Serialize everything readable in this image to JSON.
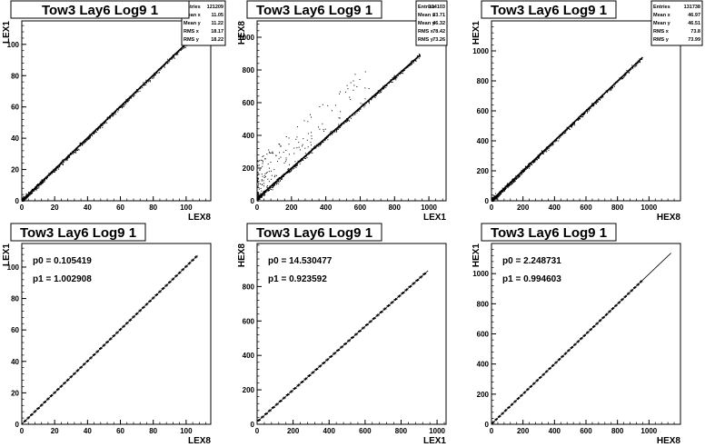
{
  "chart_data": [
    {
      "type": "scatter",
      "title": "Tow3 Lay6 Log9 1",
      "xlabel": "LEX8",
      "ylabel": "LEX1",
      "xlim": [
        0,
        115
      ],
      "ylim": [
        0,
        115
      ],
      "xticks": [
        0,
        20,
        40,
        60,
        80,
        100
      ],
      "yticks": [
        0,
        20,
        40,
        60,
        80,
        100
      ],
      "stats": [
        {
          "label": "Entries",
          "value": "121209"
        },
        {
          "label": "Mean x",
          "value": "11.05"
        },
        {
          "label": "Mean y",
          "value": "11.22"
        },
        {
          "label": "RMS x",
          "value": "18.17"
        },
        {
          "label": "RMS y",
          "value": "18.22"
        }
      ],
      "trend": {
        "slope": 1.003,
        "intercept": 0.105,
        "xmax": 105
      }
    },
    {
      "type": "scatter",
      "title": "Tow3 Lay6 Log9 1",
      "xlabel": "LEX1",
      "ylabel": "HEX8",
      "xlim": [
        0,
        1100
      ],
      "ylim": [
        0,
        1100
      ],
      "xticks": [
        0,
        200,
        400,
        600,
        800,
        1000
      ],
      "yticks": [
        0,
        200,
        400,
        600,
        800,
        1000
      ],
      "stats": [
        {
          "label": "Entries",
          "value": "134103"
        },
        {
          "label": "Mean x",
          "value": "33.71"
        },
        {
          "label": "Mean y",
          "value": "46.32"
        },
        {
          "label": "RMS x",
          "value": "78.42"
        },
        {
          "label": "RMS y",
          "value": "73.26"
        }
      ],
      "trend": {
        "slope": 0.924,
        "intercept": 14.5,
        "xmax": 950
      }
    },
    {
      "type": "scatter",
      "title": "Tow3 Lay6 Log9 1",
      "xlabel": "HEX8",
      "ylabel": "HEX1",
      "xlim": [
        0,
        1200
      ],
      "ylim": [
        0,
        1200
      ],
      "xticks": [
        0,
        200,
        400,
        600,
        800,
        1000
      ],
      "yticks": [
        0,
        200,
        400,
        600,
        800,
        1000
      ],
      "stats": [
        {
          "label": "Entries",
          "value": "131738"
        },
        {
          "label": "Mean x",
          "value": "46.97"
        },
        {
          "label": "Mean y",
          "value": "46.51"
        },
        {
          "label": "RMS x",
          "value": "73.8"
        },
        {
          "label": "RMS y",
          "value": "73.99"
        }
      ],
      "trend": {
        "slope": 0.995,
        "intercept": 2.25,
        "xmax": 960
      }
    },
    {
      "type": "line",
      "title": "Tow3 Lay6 Log9 1",
      "xlabel": "LEX8",
      "ylabel": "LEX1",
      "xlim": [
        0,
        115
      ],
      "ylim": [
        0,
        115
      ],
      "xticks": [
        0,
        20,
        40,
        60,
        80,
        100
      ],
      "yticks": [
        0,
        20,
        40,
        60,
        80,
        100
      ],
      "fit_params": [
        {
          "name": "p0",
          "value": "0.105419"
        },
        {
          "name": "p1",
          "value": "1.002908"
        }
      ],
      "fit": {
        "p0": 0.105419,
        "p1": 1.002908,
        "xmin": 0,
        "xmax": 107
      },
      "profile": {
        "xmin": 2,
        "xmax": 106,
        "step": 2
      }
    },
    {
      "type": "line",
      "title": "Tow3 Lay6 Log9 1",
      "xlabel": "LEX1",
      "ylabel": "HEX8",
      "xlim": [
        0,
        1050
      ],
      "ylim": [
        0,
        1050
      ],
      "xticks": [
        0,
        200,
        400,
        600,
        800,
        1000
      ],
      "yticks": [
        0,
        200,
        400,
        600,
        800
      ],
      "fit_params": [
        {
          "name": "p0",
          "value": "14.530477"
        },
        {
          "name": "p1",
          "value": "0.923592"
        }
      ],
      "fit": {
        "p0": 14.530477,
        "p1": 0.923592,
        "xmin": 0,
        "xmax": 950
      },
      "profile": {
        "xmin": 10,
        "xmax": 930,
        "step": 20
      }
    },
    {
      "type": "line",
      "title": "Tow3 Lay6 Log9 1",
      "xlabel": "HEX8",
      "ylabel": "HEX1",
      "xlim": [
        0,
        1200
      ],
      "ylim": [
        0,
        1200
      ],
      "xticks": [
        0,
        200,
        400,
        600,
        800,
        1000
      ],
      "yticks": [
        0,
        200,
        400,
        600,
        800,
        1000
      ],
      "fit_params": [
        {
          "name": "p0",
          "value": "2.248731"
        },
        {
          "name": "p1",
          "value": "0.994603"
        }
      ],
      "fit": {
        "p0": 2.248731,
        "p1": 0.994603,
        "xmin": 0,
        "xmax": 1140
      },
      "profile": {
        "xmin": 10,
        "xmax": 950,
        "step": 20
      }
    }
  ]
}
